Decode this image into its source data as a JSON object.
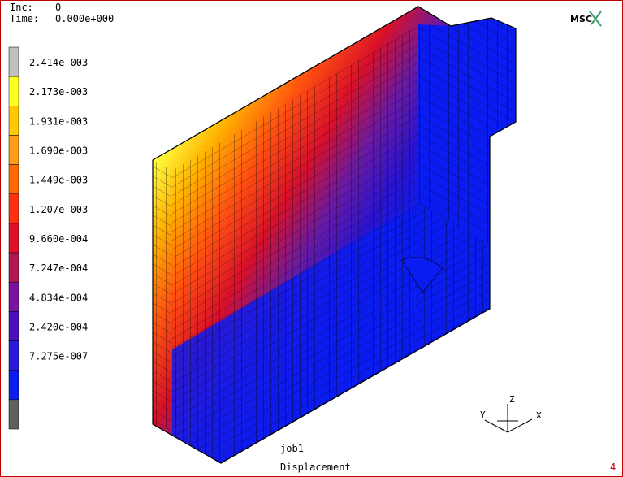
{
  "header": {
    "inc_label": "Inc:",
    "inc_value": "0",
    "time_label": "Time:",
    "time_value": "0.000e+000"
  },
  "logo": "MSC",
  "legend": {
    "labels": [
      "2.414e-003",
      "2.173e-003",
      "1.931e-003",
      "1.690e-003",
      "1.449e-003",
      "1.207e-003",
      "9.660e-004",
      "7.247e-004",
      "4.834e-004",
      "2.420e-004",
      "7.275e-007"
    ]
  },
  "triad": {
    "x": "X",
    "y": "Y",
    "z": "Z"
  },
  "footer": {
    "job": "job1",
    "result": "Displacement",
    "window": "4"
  }
}
